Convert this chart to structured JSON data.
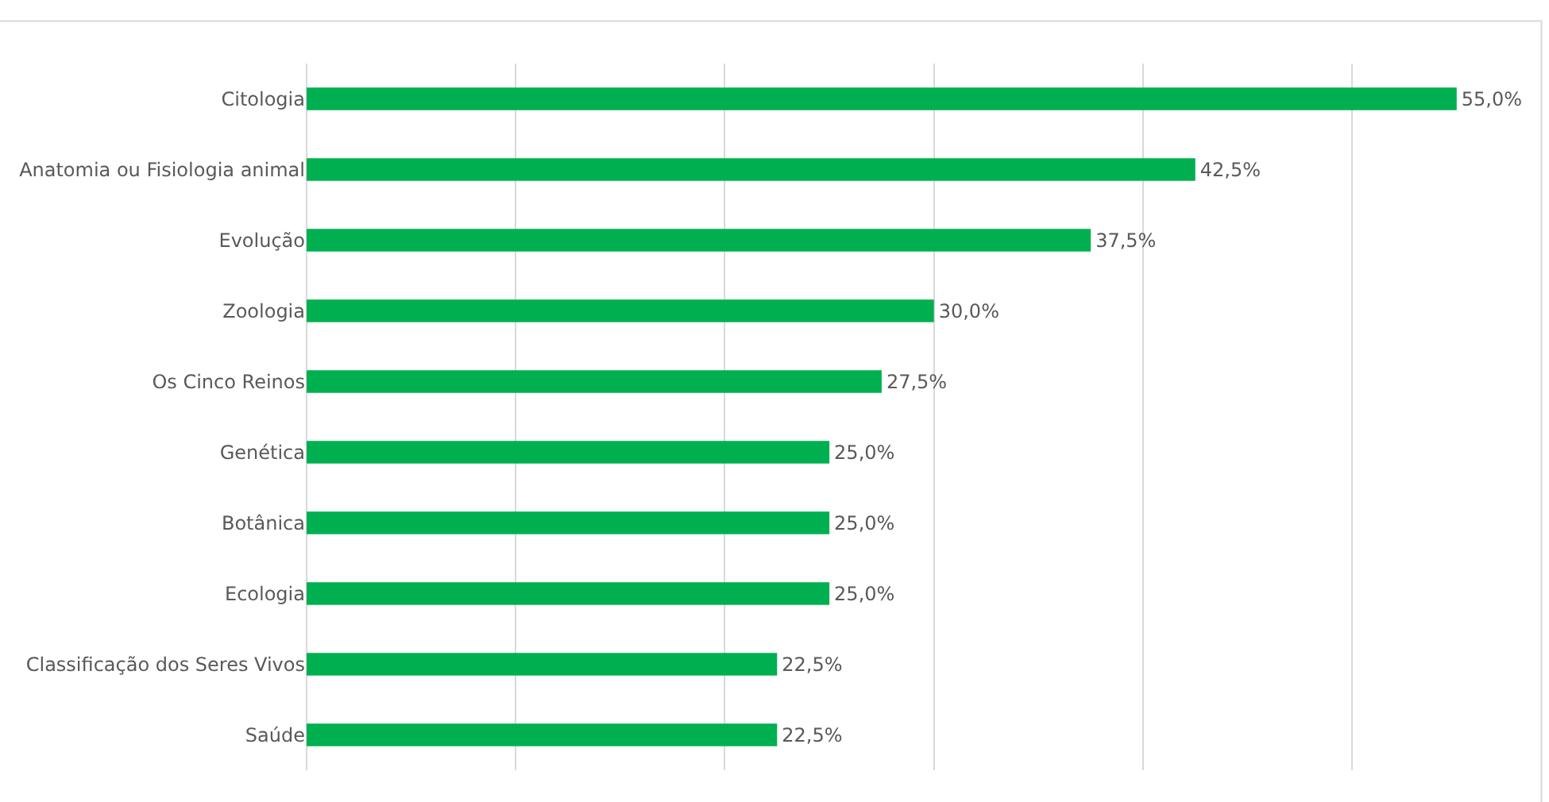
{
  "chart_data": {
    "type": "bar",
    "orientation": "horizontal",
    "categories": [
      "Citologia",
      "Anatomia ou Fisiologia animal",
      "Evolução",
      "Zoologia",
      "Os Cinco Reinos",
      "Genética",
      "Botânica",
      "Ecologia",
      "Classificação dos Seres Vivos",
      "Saúde"
    ],
    "values": [
      55.0,
      42.5,
      37.5,
      30.0,
      27.5,
      25.0,
      25.0,
      25.0,
      22.5,
      22.5
    ],
    "value_labels": [
      "55,0%",
      "42,5%",
      "37,5%",
      "30,0%",
      "27,5%",
      "25,0%",
      "25,0%",
      "25,0%",
      "22,5%",
      "22,5%"
    ],
    "color": "#00b050",
    "grid": "x",
    "tick_labels": "y"
  }
}
